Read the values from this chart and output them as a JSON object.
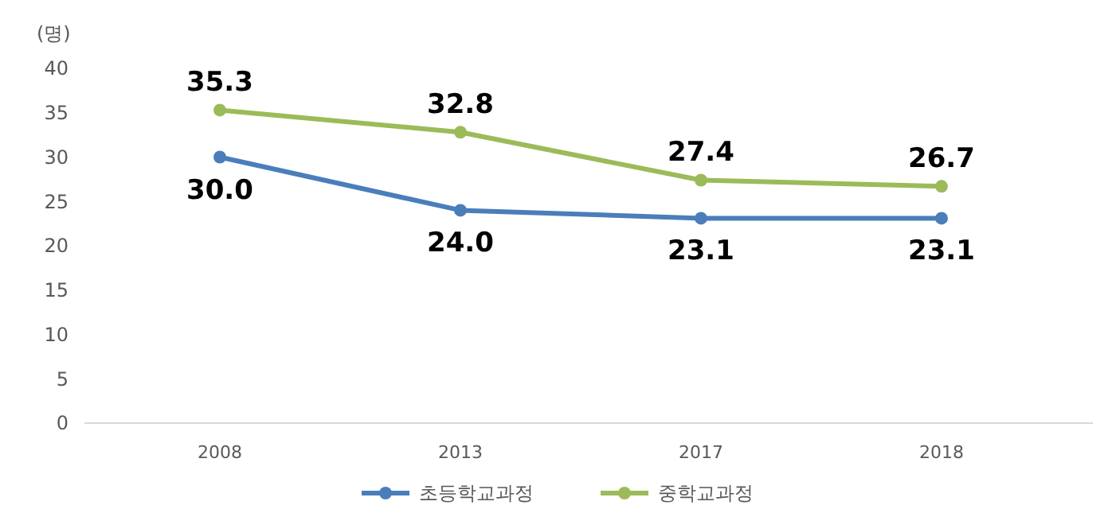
{
  "chart_data": {
    "type": "line",
    "ylabel": "(명)",
    "categories": [
      "2008",
      "2013",
      "2017",
      "2018"
    ],
    "series": [
      {
        "name": "초등학교과정",
        "color": "#4a7ebb",
        "values": [
          30.0,
          24.0,
          23.1,
          23.1
        ],
        "value_labels": [
          "30.0",
          "24.0",
          "23.1",
          "23.1"
        ]
      },
      {
        "name": "중학교과정",
        "color": "#9bbb59",
        "values": [
          35.3,
          32.8,
          27.4,
          26.7
        ],
        "value_labels": [
          "35.3",
          "32.8",
          "27.4",
          "26.7"
        ]
      }
    ],
    "ylim": [
      0,
      40
    ],
    "yticks": [
      0,
      5,
      10,
      15,
      20,
      25,
      30,
      35,
      40
    ],
    "legend": "bottom",
    "marker": "circle",
    "line_style": "solid"
  }
}
